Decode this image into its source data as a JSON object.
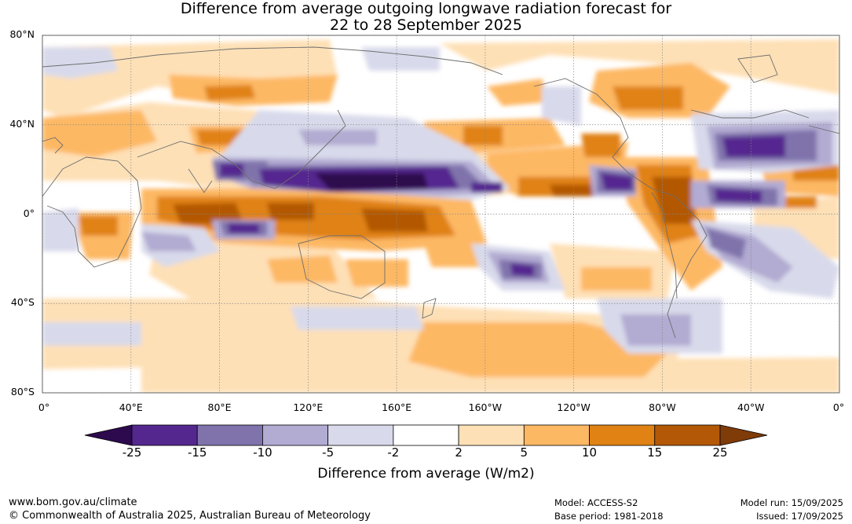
{
  "title": {
    "line1": "Difference from average outgoing longwave radiation forecast for",
    "line2": "22 to 28 September 2025"
  },
  "map": {
    "lat_labels": [
      "80°N",
      "40°N",
      "0°",
      "40°S",
      "80°S"
    ],
    "lat_values": [
      80,
      40,
      0,
      -40,
      -80
    ],
    "lon_labels": [
      "0°",
      "40°E",
      "80°E",
      "120°E",
      "160°E",
      "160°W",
      "120°W",
      "80°W",
      "40°W",
      "0°"
    ],
    "lon_values": [
      0,
      40,
      80,
      120,
      160,
      200,
      240,
      280,
      320,
      360
    ],
    "grid": true
  },
  "colorbar": {
    "ticks": [
      "-25",
      "-15",
      "-10",
      "-5",
      "-2",
      "2",
      "5",
      "10",
      "15",
      "25"
    ],
    "colors": [
      "#2d0a4e",
      "#54278f",
      "#8073ac",
      "#b2abd2",
      "#d8daeb",
      "#ffffff",
      "#fee0b6",
      "#fdb863",
      "#e08214",
      "#b35806",
      "#7f3b08"
    ],
    "label": "Difference from average (W/m2)"
  },
  "footer": {
    "website": "www.bom.gov.au/climate",
    "copyright": "© Commonwealth of Australia 2025, Australian Bureau of Meteorology",
    "model": "Model: ACCESS-S2",
    "base_period": "Base period: 1981-2018",
    "model_run": "Model run: 15/09/2025",
    "issued": "Issued: 17/09/2025"
  }
}
